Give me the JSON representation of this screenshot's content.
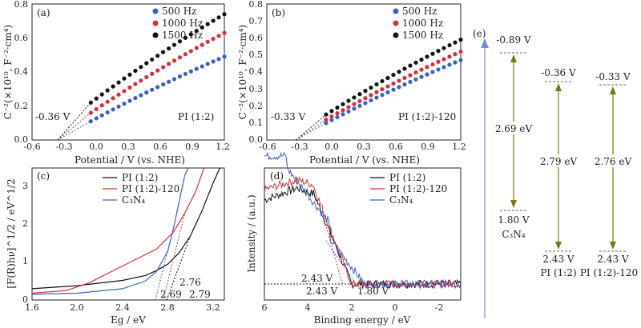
{
  "colors": {
    "blue": "#3a62c4",
    "red": "#d8303a",
    "black": "#111111",
    "olive": "#8a8a10",
    "gold": "#c08a10",
    "orange": "#e07020",
    "arrow_blue": "#7090d0"
  },
  "chart_data": [
    {
      "panel": "(a)",
      "type": "scatter",
      "xlabel": "Potential / V (vs. NHE)",
      "ylabel": "C⁻²(×10¹⁰, F⁻²·cm⁴)",
      "xlim": [
        -0.6,
        1.2
      ],
      "ylim": [
        0,
        0.8
      ],
      "xticks": [
        "-0.6",
        "-0.3",
        "0.0",
        "0.3",
        "0.6",
        "0.9",
        "1.2"
      ],
      "yticks": [
        "0.0",
        "0.2",
        "0.4",
        "0.6",
        "0.8"
      ],
      "legend": "top-left",
      "sample": "PI (1:2)",
      "flatband_label": "-0.36 V",
      "flatband": -0.36,
      "series": [
        {
          "name": "500 Hz",
          "color": "blue",
          "x_start": -0.05,
          "x_end": 1.2,
          "y_start": 0.11,
          "y_end": 0.49
        },
        {
          "name": "1000 Hz",
          "color": "red",
          "x_start": -0.05,
          "x_end": 1.2,
          "y_start": 0.16,
          "y_end": 0.63
        },
        {
          "name": "1500 Hz",
          "color": "black",
          "x_start": -0.05,
          "x_end": 1.2,
          "y_start": 0.22,
          "y_end": 0.74
        }
      ]
    },
    {
      "panel": "(b)",
      "type": "scatter",
      "xlim": [
        -0.6,
        1.2
      ],
      "ylim": [
        0,
        0.8
      ],
      "xticks": [
        "-0.6",
        "-0.3",
        "0.0",
        "0.3",
        "0.6",
        "0.9",
        "1.2"
      ],
      "yticks": [
        "0.0",
        "0.1",
        "0.2",
        "0.3",
        "0.4",
        "0.5",
        "0.6",
        "0.7",
        "0.8"
      ],
      "legend": "top-left",
      "sample": "PI (1:2)-120",
      "flatband_label": "-0.33 V",
      "flatband": -0.33,
      "series": [
        {
          "name": "500 Hz",
          "color": "blue",
          "x_start": -0.05,
          "x_end": 1.2,
          "y_start": 0.1,
          "y_end": 0.47
        },
        {
          "name": "1000 Hz",
          "color": "red",
          "x_start": -0.05,
          "x_end": 1.2,
          "y_start": 0.12,
          "y_end": 0.52
        },
        {
          "name": "1500 Hz",
          "color": "black",
          "x_start": -0.05,
          "x_end": 1.2,
          "y_start": 0.15,
          "y_end": 0.59
        }
      ]
    },
    {
      "panel": "(c)",
      "type": "line",
      "xlabel": "Eg / eV",
      "ylabel": "[F(R)hν]^1/2 / eV^1/2",
      "xlim": [
        1.6,
        3.3
      ],
      "ylim": [
        0,
        3.5
      ],
      "xticks": [
        "1.6",
        "2.0",
        "2.4",
        "2.8",
        "3.2"
      ],
      "yticks": [
        "0",
        "1",
        "2",
        "3"
      ],
      "legend": "top-center",
      "series": [
        {
          "name": "PI (1:2)",
          "color": "black"
        },
        {
          "name": "PI (1:2)-120",
          "color": "red"
        },
        {
          "name": "C₃N₄",
          "color": "blue"
        }
      ],
      "annotations": [
        {
          "text": "2.69",
          "color": "blue",
          "x": 2.69
        },
        {
          "text": "2.76",
          "color": "red",
          "x": 2.76
        },
        {
          "text": "2.79",
          "color": "black",
          "x": 2.79
        }
      ]
    },
    {
      "panel": "(d)",
      "type": "line",
      "xlabel": "Binding energy / eV",
      "ylabel": "Intensity / (a.u.)",
      "xlim": [
        6,
        -3
      ],
      "xticks": [
        "6",
        "4",
        "2",
        "0",
        "-2"
      ],
      "legend": "top-right",
      "series": [
        {
          "name": "PI (1:2)",
          "color": "black"
        },
        {
          "name": "PI (1:2)-120",
          "color": "red"
        },
        {
          "name": "C₃N₄",
          "color": "blue"
        }
      ],
      "annotations": [
        {
          "text": "2.43 V",
          "color": "red",
          "x": 2.43
        },
        {
          "text": "2.43 V",
          "color": "black",
          "x": 2.43
        },
        {
          "text": "1.80 V",
          "color": "blue",
          "x": 1.8
        }
      ]
    },
    {
      "panel": "(e)",
      "type": "diagram",
      "columns": [
        {
          "name": "C₃N₄",
          "cb": "-0.89 V",
          "vb": "1.80 V",
          "gap": "2.69 eV"
        },
        {
          "name": "PI (1:2)",
          "cb": "-0.36 V",
          "vb": "2.43 V",
          "gap": "2.79 eV"
        },
        {
          "name": "PI (1:2)-120",
          "cb": "-0.33 V",
          "vb": "2.43 V",
          "gap": "2.76 eV"
        }
      ]
    }
  ]
}
